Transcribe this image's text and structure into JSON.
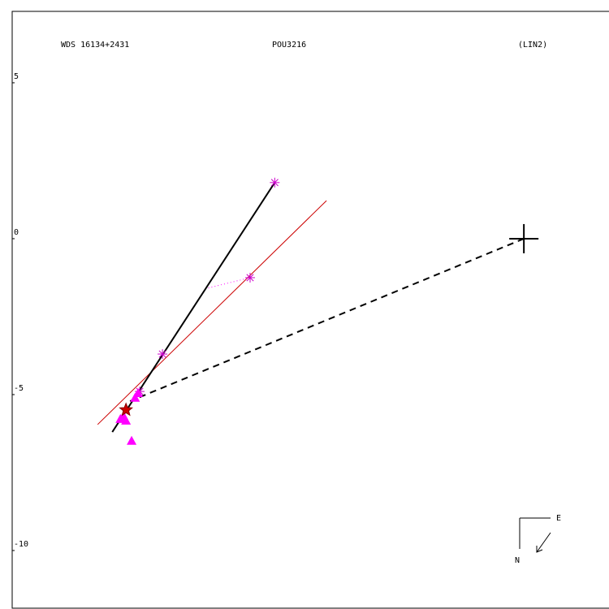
{
  "chart_data": {
    "type": "scatter",
    "title_left": "WDS 16134+2431",
    "title_center": "POU3216",
    "title_right": "(LIN2)",
    "xlim": [
      -16.41,
      2.73
    ],
    "ylim": [
      -11.85,
      7.29
    ],
    "yticks": [
      5,
      0,
      -5,
      -10
    ],
    "lines": [
      {
        "color": "#cc0000",
        "dash": "none",
        "x": [
          -13.67,
          -6.33
        ],
        "values": [
          -5.96,
          1.22
        ]
      },
      {
        "color": "#000000",
        "dash": "none",
        "x": [
          -7.99,
          -13.2
        ],
        "values": [
          1.8,
          -6.2
        ]
      },
      {
        "color": "#000000",
        "dash": "8 6",
        "x": [
          0,
          -12.63
        ],
        "values": [
          0,
          -5.21
        ]
      },
      {
        "color": "#ff00ff",
        "dash": "1 3",
        "x": [
          -8.78,
          -10.16
        ],
        "values": [
          -1.25,
          -1.59
        ]
      }
    ],
    "series": [
      {
        "marker": "asterisk",
        "color": "#cc00cc",
        "x": [
          -7.99,
          -8.78,
          -11.59,
          -12.32
        ],
        "values": [
          1.8,
          -1.25,
          -3.7,
          -4.9
        ]
      },
      {
        "marker": "triangle",
        "color": "#ff00ff",
        "x": [
          -12.37,
          -12.47,
          -12.94,
          -12.84,
          -12.76,
          -12.58
        ],
        "values": [
          -4.95,
          -5.1,
          -5.78,
          -5.68,
          -5.83,
          -6.48
        ]
      },
      {
        "marker": "star",
        "color": "#cc0000",
        "x": [
          -12.76
        ],
        "values": [
          -5.49
        ]
      },
      {
        "marker": "plus",
        "color": "#000000",
        "x": [
          0
        ],
        "values": [
          0
        ]
      }
    ],
    "compass_east": "E",
    "compass_north": "N"
  }
}
